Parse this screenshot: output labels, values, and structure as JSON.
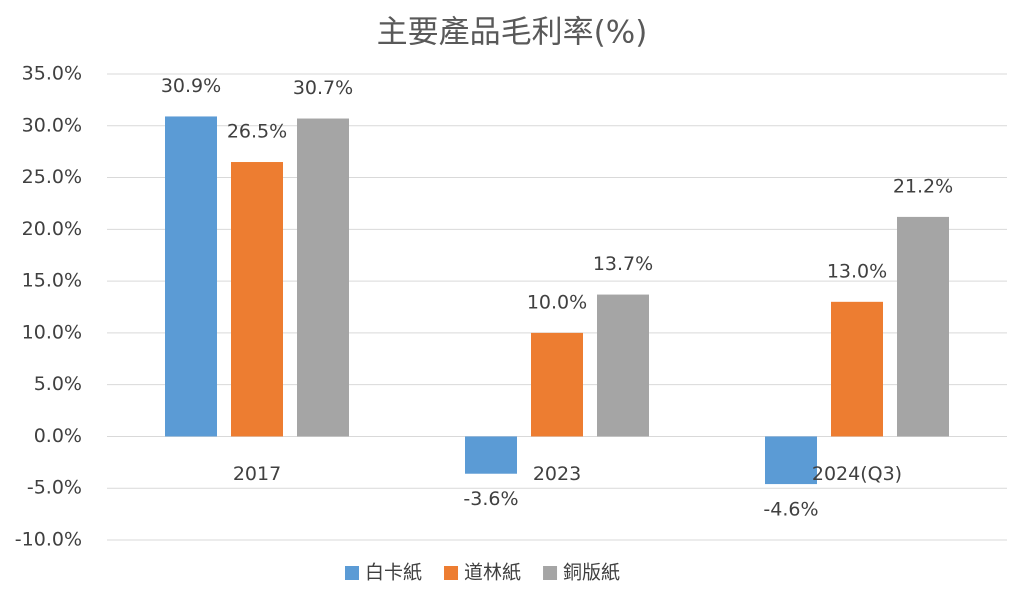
{
  "chart_data": {
    "type": "bar",
    "title": "主要產品毛利率(%)",
    "categories": [
      "2017",
      "2023",
      "2024(Q3)"
    ],
    "series": [
      {
        "name": "白卡紙",
        "color": "#5b9bd5",
        "values": [
          30.9,
          -3.6,
          -4.6
        ],
        "value_labels": [
          "30.9%",
          "-3.6%",
          "-4.6%"
        ]
      },
      {
        "name": "道林紙",
        "color": "#ed7d31",
        "values": [
          26.5,
          10.0,
          13.0
        ],
        "value_labels": [
          "26.5%",
          "10.0%",
          "13.0%"
        ]
      },
      {
        "name": "銅版紙",
        "color": "#a5a5a5",
        "values": [
          30.7,
          13.7,
          21.2
        ],
        "value_labels": [
          "30.7%",
          "13.7%",
          "21.2%"
        ]
      }
    ],
    "ylim": [
      -10,
      35
    ],
    "yticks": [
      {
        "value": -10,
        "label": "-10.0%"
      },
      {
        "value": -5,
        "label": "-5.0%"
      },
      {
        "value": 0,
        "label": "0.0%"
      },
      {
        "value": 5,
        "label": "5.0%"
      },
      {
        "value": 10,
        "label": "10.0%"
      },
      {
        "value": 15,
        "label": "15.0%"
      },
      {
        "value": 20,
        "label": "20.0%"
      },
      {
        "value": 25,
        "label": "25.0%"
      },
      {
        "value": 30,
        "label": "30.0%"
      },
      {
        "value": 35,
        "label": "35.0%"
      }
    ],
    "grid": true,
    "legend": "bottom"
  }
}
